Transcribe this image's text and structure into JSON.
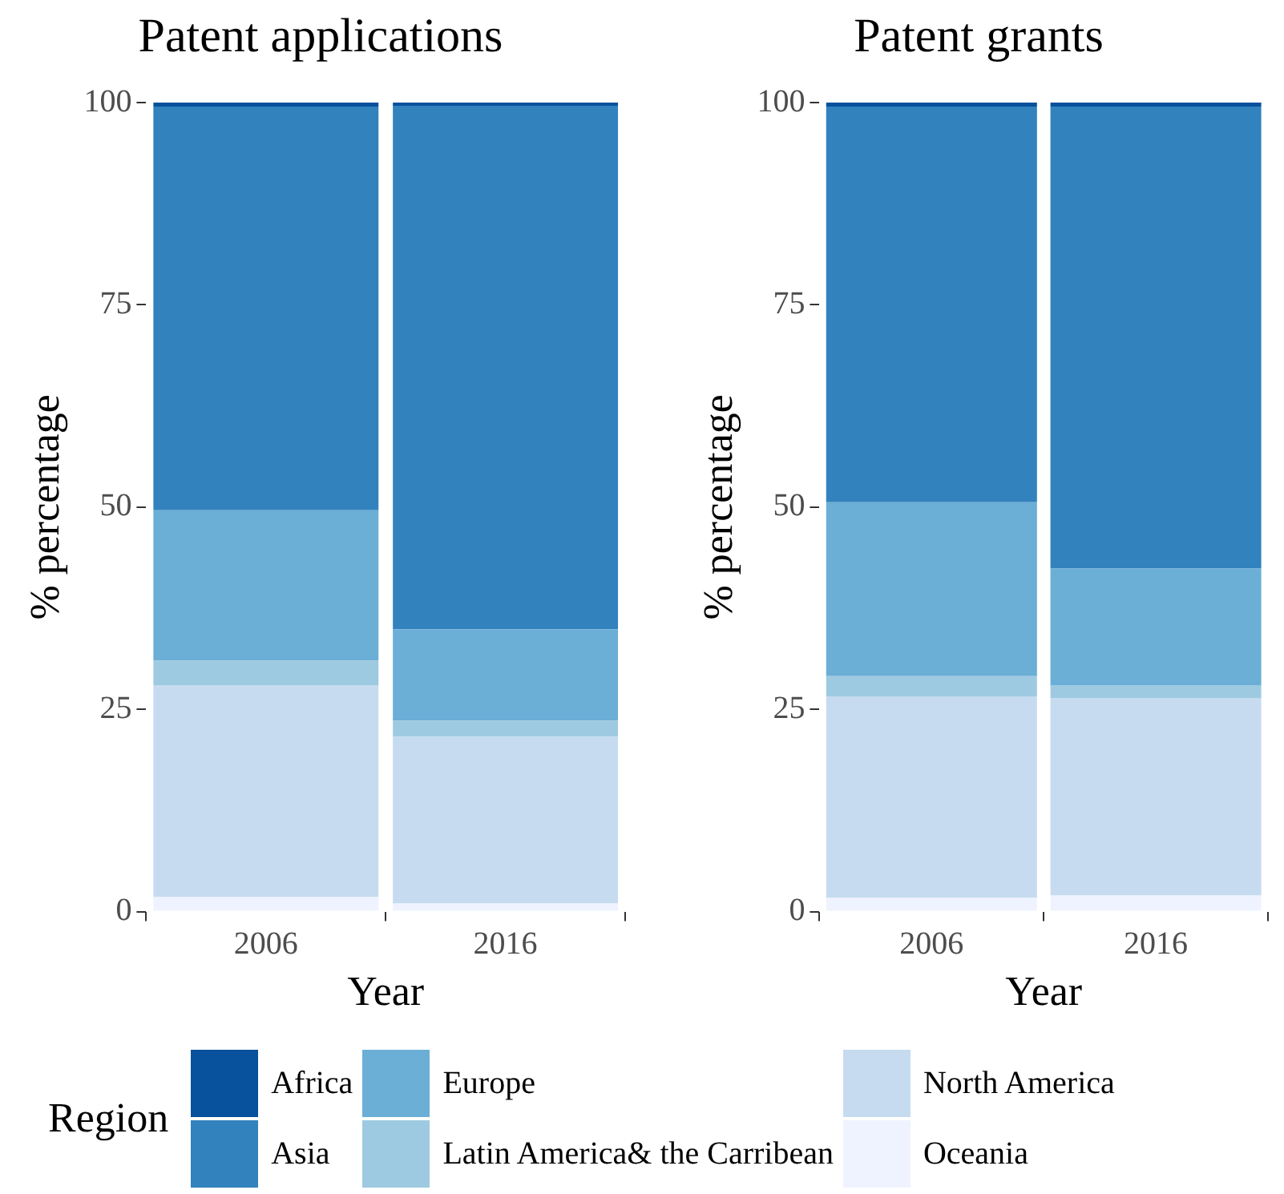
{
  "chart_data": [
    {
      "type": "bar",
      "title": "Patent applications",
      "xlabel": "Year",
      "ylabel": "% percentage",
      "categories": [
        "2006",
        "2016"
      ],
      "stacked": true,
      "ylim": [
        0,
        100
      ],
      "yticks": [
        0,
        25,
        50,
        75,
        100
      ],
      "grid": false,
      "legend": "bottom",
      "legend_title": "Region",
      "series": [
        {
          "name": "Oceania",
          "color": "#eff3ff",
          "values": [
            1.8,
            1.0
          ]
        },
        {
          "name": "North America",
          "color": "#c6dbef",
          "values": [
            26.2,
            20.6
          ]
        },
        {
          "name": "Latin America& the Carribean",
          "color": "#9ecae1",
          "values": [
            3.0,
            2.0
          ]
        },
        {
          "name": "Europe",
          "color": "#6baed6",
          "values": [
            18.6,
            11.3
          ]
        },
        {
          "name": "Asia",
          "color": "#3182bd",
          "values": [
            49.9,
            64.7
          ]
        },
        {
          "name": "Africa",
          "color": "#08519c",
          "values": [
            0.5,
            0.4
          ]
        }
      ]
    },
    {
      "type": "bar",
      "title": "Patent grants",
      "xlabel": "Year",
      "ylabel": "% percentage",
      "categories": [
        "2006",
        "2016"
      ],
      "stacked": true,
      "ylim": [
        0,
        100
      ],
      "yticks": [
        0,
        25,
        50,
        75,
        100
      ],
      "grid": false,
      "legend": "bottom",
      "series": [
        {
          "name": "Oceania",
          "color": "#eff3ff",
          "values": [
            1.7,
            2.0
          ]
        },
        {
          "name": "North America",
          "color": "#c6dbef",
          "values": [
            24.9,
            24.4
          ]
        },
        {
          "name": "Latin America& the Carribean",
          "color": "#9ecae1",
          "values": [
            2.5,
            1.6
          ]
        },
        {
          "name": "Europe",
          "color": "#6baed6",
          "values": [
            21.5,
            14.4
          ]
        },
        {
          "name": "Asia",
          "color": "#3182bd",
          "values": [
            48.9,
            57.1
          ]
        },
        {
          "name": "Africa",
          "color": "#08519c",
          "values": [
            0.5,
            0.5
          ]
        }
      ]
    }
  ]
}
